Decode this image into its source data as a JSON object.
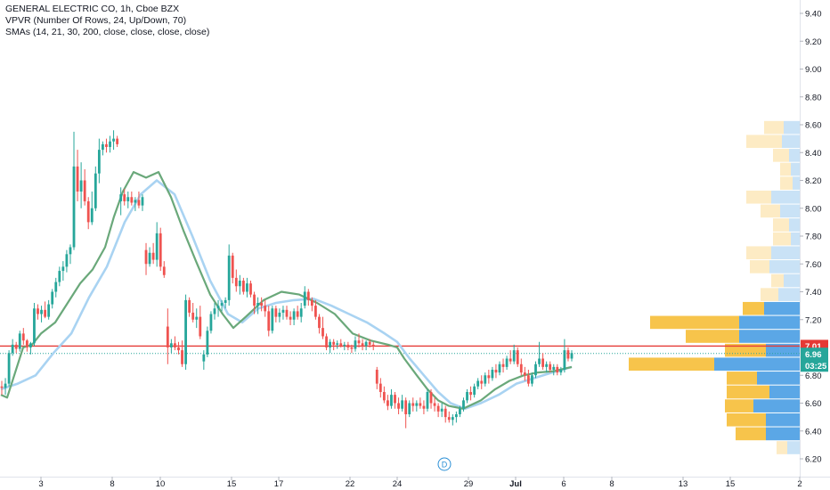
{
  "legend": {
    "symbol_line": "GENERAL ELECTRIC CO, 1h, Cboe BZX",
    "vpvr_line": "VPVR (Number Of Rows, 24, Up/Down, 70)",
    "sma_line": "SMAs (14, 21, 30, 200, close, close, close, close)"
  },
  "colors": {
    "up": "#26a69a",
    "down": "#ef5350",
    "sma_fast": "#6aa87a",
    "sma_slow": "#a9d3f2",
    "vp_up": "#f7c44b",
    "vp_down": "#5ba7e6",
    "vp_up_faded": "#fdebc4",
    "vp_down_faded": "#c9e2f6",
    "price_line": "#e53935",
    "last_price_bg": "#26a69a"
  },
  "chart_data": {
    "type": "candlestick",
    "price_axis": {
      "ticks": [
        "6.20",
        "6.40",
        "6.60",
        "6.80",
        "7.00",
        "7.20",
        "7.40",
        "7.60",
        "7.80",
        "8.00",
        "8.20",
        "8.40",
        "8.60",
        "8.80",
        "9.00",
        "9.20",
        "9.40"
      ],
      "range": [
        6.12,
        9.5
      ]
    },
    "time_axis": {
      "labels": [
        "3",
        "8",
        "10",
        "15",
        "17",
        "22",
        "24",
        "29",
        "Jul",
        "6",
        "8",
        "13",
        "15",
        "2"
      ]
    },
    "price_labels": {
      "horizontal_line": "7.01",
      "last_price": "6.96",
      "countdown": "03:25"
    },
    "dividend_marker": "D",
    "candles": [
      [
        6.72,
        6.76,
        6.66,
        6.71
      ],
      [
        6.71,
        6.78,
        6.66,
        6.74
      ],
      [
        6.74,
        6.98,
        6.72,
        6.96
      ],
      [
        6.96,
        7.06,
        6.94,
        7.02
      ],
      [
        7.02,
        7.04,
        6.96,
        6.99
      ],
      [
        6.99,
        7.12,
        6.97,
        7.1
      ],
      [
        7.1,
        7.14,
        7.02,
        7.05
      ],
      [
        7.05,
        7.06,
        6.97,
        7.0
      ],
      [
        7.0,
        7.04,
        6.95,
        7.03
      ],
      [
        7.03,
        7.32,
        7.01,
        7.28
      ],
      [
        7.28,
        7.31,
        7.2,
        7.24
      ],
      [
        7.24,
        7.3,
        7.18,
        7.27
      ],
      [
        7.27,
        7.33,
        7.21,
        7.22
      ],
      [
        7.22,
        7.34,
        7.2,
        7.31
      ],
      [
        7.31,
        7.42,
        7.28,
        7.4
      ],
      [
        7.4,
        7.5,
        7.36,
        7.47
      ],
      [
        7.47,
        7.58,
        7.44,
        7.55
      ],
      [
        7.55,
        7.62,
        7.48,
        7.58
      ],
      [
        7.58,
        7.7,
        7.54,
        7.67
      ],
      [
        7.67,
        7.74,
        7.6,
        7.72
      ],
      [
        7.72,
        8.55,
        7.7,
        8.3
      ],
      [
        8.3,
        8.42,
        8.05,
        8.12
      ],
      [
        8.12,
        8.33,
        8.0,
        8.2
      ],
      [
        8.2,
        8.28,
        8.02,
        8.05
      ],
      [
        8.05,
        8.08,
        7.85,
        7.9
      ],
      [
        7.9,
        8.12,
        7.88,
        8.0
      ],
      [
        8.0,
        8.3,
        7.98,
        8.25
      ],
      [
        8.25,
        8.5,
        8.18,
        8.42
      ],
      [
        8.42,
        8.48,
        8.38,
        8.46
      ],
      [
        8.46,
        8.5,
        8.4,
        8.44
      ],
      [
        8.44,
        8.52,
        8.4,
        8.48
      ],
      [
        8.48,
        8.56,
        8.42,
        8.5
      ],
      [
        8.5,
        8.52,
        8.44,
        8.46
      ],
      [
        8.05,
        8.15,
        7.95,
        8.1
      ],
      [
        8.1,
        8.14,
        8.02,
        8.05
      ],
      [
        8.05,
        8.12,
        8.0,
        8.08
      ],
      [
        8.08,
        8.12,
        8.02,
        8.04
      ],
      [
        8.04,
        8.08,
        7.98,
        8.06
      ],
      [
        8.06,
        8.12,
        8.0,
        8.02
      ],
      [
        8.02,
        8.1,
        7.98,
        8.08
      ],
      [
        7.7,
        7.75,
        7.52,
        7.6
      ],
      [
        7.6,
        7.72,
        7.58,
        7.68
      ],
      [
        7.68,
        7.75,
        7.6,
        7.63
      ],
      [
        7.63,
        7.9,
        7.58,
        7.82
      ],
      [
        7.82,
        7.86,
        7.55,
        7.58
      ],
      [
        7.58,
        7.62,
        7.5,
        7.52
      ],
      [
        7.15,
        7.28,
        6.88,
        7.0
      ],
      [
        7.0,
        7.06,
        6.96,
        7.03
      ],
      [
        7.03,
        7.08,
        6.98,
        7.0
      ],
      [
        7.0,
        7.04,
        6.95,
        6.98
      ],
      [
        6.98,
        7.05,
        6.86,
        6.88
      ],
      [
        6.88,
        7.38,
        6.84,
        7.34
      ],
      [
        7.34,
        7.36,
        7.22,
        7.25
      ],
      [
        7.25,
        7.32,
        7.18,
        7.2
      ],
      [
        7.2,
        7.28,
        7.14,
        7.22
      ],
      [
        7.22,
        7.3,
        7.06,
        7.08
      ],
      [
        6.9,
        6.98,
        6.84,
        6.95
      ],
      [
        6.95,
        7.15,
        6.93,
        7.12
      ],
      [
        7.12,
        7.26,
        7.1,
        7.24
      ],
      [
        7.24,
        7.32,
        7.2,
        7.28
      ],
      [
        7.28,
        7.34,
        7.22,
        7.3
      ],
      [
        7.3,
        7.34,
        7.26,
        7.32
      ],
      [
        7.32,
        7.36,
        7.28,
        7.34
      ],
      [
        7.34,
        7.74,
        7.3,
        7.66
      ],
      [
        7.66,
        7.68,
        7.46,
        7.5
      ],
      [
        7.5,
        7.56,
        7.4,
        7.44
      ],
      [
        7.44,
        7.52,
        7.38,
        7.48
      ],
      [
        7.48,
        7.5,
        7.38,
        7.4
      ],
      [
        7.4,
        7.5,
        7.36,
        7.46
      ],
      [
        7.46,
        7.48,
        7.36,
        7.38
      ],
      [
        7.38,
        7.4,
        7.24,
        7.3
      ],
      [
        7.3,
        7.36,
        7.24,
        7.32
      ],
      [
        7.32,
        7.36,
        7.26,
        7.3
      ],
      [
        7.3,
        7.34,
        7.22,
        7.26
      ],
      [
        7.26,
        7.3,
        7.08,
        7.12
      ],
      [
        7.12,
        7.3,
        7.1,
        7.28
      ],
      [
        7.28,
        7.3,
        7.18,
        7.22
      ],
      [
        7.22,
        7.28,
        7.18,
        7.25
      ],
      [
        7.25,
        7.3,
        7.2,
        7.27
      ],
      [
        7.27,
        7.3,
        7.2,
        7.22
      ],
      [
        7.22,
        7.26,
        7.16,
        7.2
      ],
      [
        7.2,
        7.28,
        7.16,
        7.26
      ],
      [
        7.26,
        7.3,
        7.2,
        7.22
      ],
      [
        7.22,
        7.32,
        7.18,
        7.28
      ],
      [
        7.3,
        7.44,
        7.28,
        7.4
      ],
      [
        7.4,
        7.42,
        7.3,
        7.34
      ],
      [
        7.34,
        7.36,
        7.26,
        7.3
      ],
      [
        7.3,
        7.34,
        7.2,
        7.22
      ],
      [
        7.22,
        7.24,
        7.1,
        7.14
      ],
      [
        7.14,
        7.22,
        7.06,
        7.08
      ],
      [
        7.08,
        7.1,
        6.98,
        7.0
      ],
      [
        7.0,
        7.06,
        6.96,
        7.04
      ],
      [
        7.04,
        7.06,
        6.98,
        7.02
      ],
      [
        7.02,
        7.05,
        6.99,
        7.03
      ],
      [
        7.03,
        7.06,
        7.0,
        7.01
      ],
      [
        7.01,
        7.04,
        6.98,
        7.02
      ],
      [
        7.02,
        7.04,
        6.98,
        7.0
      ],
      [
        7.0,
        7.02,
        6.96,
        6.99
      ],
      [
        6.99,
        7.08,
        6.97,
        7.05
      ],
      [
        7.05,
        7.1,
        7.0,
        7.03
      ],
      [
        7.03,
        7.06,
        6.98,
        7.01
      ],
      [
        7.01,
        7.05,
        6.98,
        7.04
      ],
      [
        7.04,
        7.06,
        7.0,
        7.02
      ],
      [
        7.02,
        7.04,
        6.98,
        7.01
      ],
      [
        6.84,
        6.86,
        6.7,
        6.74
      ],
      [
        6.74,
        6.78,
        6.64,
        6.68
      ],
      [
        6.68,
        6.72,
        6.6,
        6.62
      ],
      [
        6.62,
        6.66,
        6.55,
        6.58
      ],
      [
        6.58,
        6.7,
        6.56,
        6.66
      ],
      [
        6.66,
        6.68,
        6.56,
        6.6
      ],
      [
        6.6,
        6.64,
        6.52,
        6.56
      ],
      [
        6.56,
        6.66,
        6.54,
        6.62
      ],
      [
        6.62,
        6.64,
        6.42,
        6.52
      ],
      [
        6.52,
        6.62,
        6.5,
        6.6
      ],
      [
        6.6,
        6.64,
        6.54,
        6.58
      ],
      [
        6.58,
        6.62,
        6.54,
        6.6
      ],
      [
        6.6,
        6.64,
        6.56,
        6.58
      ],
      [
        6.58,
        6.62,
        6.52,
        6.56
      ],
      [
        6.56,
        6.7,
        6.54,
        6.68
      ],
      [
        6.68,
        6.7,
        6.56,
        6.6
      ],
      [
        6.6,
        6.64,
        6.54,
        6.58
      ],
      [
        6.58,
        6.6,
        6.5,
        6.54
      ],
      [
        6.54,
        6.6,
        6.5,
        6.56
      ],
      [
        6.56,
        6.58,
        6.46,
        6.5
      ],
      [
        6.5,
        6.54,
        6.46,
        6.48
      ],
      [
        6.48,
        6.52,
        6.44,
        6.5
      ],
      [
        6.5,
        6.54,
        6.46,
        6.52
      ],
      [
        6.52,
        6.58,
        6.5,
        6.56
      ],
      [
        6.56,
        6.64,
        6.54,
        6.62
      ],
      [
        6.62,
        6.7,
        6.6,
        6.68
      ],
      [
        6.68,
        6.72,
        6.62,
        6.66
      ],
      [
        6.66,
        6.74,
        6.64,
        6.72
      ],
      [
        6.72,
        6.78,
        6.7,
        6.76
      ],
      [
        6.76,
        6.8,
        6.7,
        6.74
      ],
      [
        6.74,
        6.82,
        6.72,
        6.8
      ],
      [
        6.8,
        6.84,
        6.74,
        6.78
      ],
      [
        6.78,
        6.86,
        6.76,
        6.84
      ],
      [
        6.84,
        6.88,
        6.78,
        6.82
      ],
      [
        6.82,
        6.9,
        6.8,
        6.88
      ],
      [
        6.88,
        6.92,
        6.82,
        6.86
      ],
      [
        6.86,
        6.94,
        6.84,
        6.92
      ],
      [
        6.92,
        6.98,
        6.88,
        6.9
      ],
      [
        6.9,
        7.02,
        6.88,
        6.98
      ],
      [
        6.98,
        7.0,
        6.86,
        6.88
      ],
      [
        6.88,
        6.92,
        6.8,
        6.82
      ],
      [
        6.82,
        6.86,
        6.76,
        6.8
      ],
      [
        6.8,
        6.84,
        6.72,
        6.74
      ],
      [
        6.74,
        6.82,
        6.72,
        6.8
      ],
      [
        6.8,
        6.9,
        6.78,
        6.88
      ],
      [
        6.88,
        7.04,
        6.86,
        6.92
      ],
      [
        6.92,
        6.96,
        6.84,
        6.86
      ],
      [
        6.86,
        6.9,
        6.82,
        6.88
      ],
      [
        6.88,
        6.9,
        6.82,
        6.84
      ],
      [
        6.84,
        6.88,
        6.8,
        6.86
      ],
      [
        6.86,
        6.88,
        6.8,
        6.82
      ],
      [
        6.82,
        6.86,
        6.8,
        6.84
      ],
      [
        6.84,
        7.06,
        6.82,
        6.98
      ],
      [
        6.98,
        7.0,
        6.9,
        6.92
      ],
      [
        6.92,
        6.98,
        6.9,
        6.96
      ]
    ],
    "sma_fast": [
      [
        1,
        6.66
      ],
      [
        8,
        6.64
      ],
      [
        16,
        6.8
      ],
      [
        26,
        7.0
      ],
      [
        36,
        7.02
      ],
      [
        46,
        7.1
      ],
      [
        62,
        7.18
      ],
      [
        76,
        7.32
      ],
      [
        90,
        7.46
      ],
      [
        104,
        7.56
      ],
      [
        118,
        7.72
      ],
      [
        128,
        7.94
      ],
      [
        138,
        8.12
      ],
      [
        150,
        8.26
      ],
      [
        164,
        8.22
      ],
      [
        178,
        8.26
      ],
      [
        192,
        8.08
      ],
      [
        206,
        7.84
      ],
      [
        220,
        7.62
      ],
      [
        236,
        7.38
      ],
      [
        250,
        7.24
      ],
      [
        262,
        7.14
      ],
      [
        276,
        7.22
      ],
      [
        296,
        7.34
      ],
      [
        316,
        7.4
      ],
      [
        336,
        7.38
      ],
      [
        356,
        7.32
      ],
      [
        376,
        7.24
      ],
      [
        396,
        7.1
      ],
      [
        416,
        7.05
      ],
      [
        436,
        7.02
      ],
      [
        446,
        7.0
      ],
      [
        454,
        6.92
      ],
      [
        468,
        6.8
      ],
      [
        480,
        6.7
      ],
      [
        492,
        6.62
      ],
      [
        504,
        6.58
      ],
      [
        520,
        6.56
      ],
      [
        540,
        6.62
      ],
      [
        556,
        6.7
      ],
      [
        572,
        6.76
      ],
      [
        588,
        6.8
      ],
      [
        604,
        6.82
      ],
      [
        622,
        6.83
      ],
      [
        642,
        6.86
      ]
    ],
    "sma_slow": [
      [
        1,
        6.7
      ],
      [
        20,
        6.74
      ],
      [
        40,
        6.8
      ],
      [
        60,
        6.96
      ],
      [
        80,
        7.1
      ],
      [
        100,
        7.36
      ],
      [
        120,
        7.58
      ],
      [
        140,
        7.9
      ],
      [
        158,
        8.1
      ],
      [
        176,
        8.2
      ],
      [
        196,
        8.1
      ],
      [
        216,
        7.8
      ],
      [
        236,
        7.48
      ],
      [
        256,
        7.24
      ],
      [
        272,
        7.18
      ],
      [
        290,
        7.28
      ],
      [
        310,
        7.32
      ],
      [
        330,
        7.34
      ],
      [
        352,
        7.35
      ],
      [
        372,
        7.3
      ],
      [
        392,
        7.24
      ],
      [
        412,
        7.18
      ],
      [
        432,
        7.1
      ],
      [
        446,
        7.04
      ],
      [
        460,
        6.92
      ],
      [
        476,
        6.8
      ],
      [
        492,
        6.68
      ],
      [
        506,
        6.6
      ],
      [
        522,
        6.56
      ],
      [
        540,
        6.6
      ],
      [
        560,
        6.66
      ],
      [
        580,
        6.74
      ],
      [
        600,
        6.78
      ],
      [
        620,
        6.82
      ],
      [
        642,
        6.86
      ]
    ],
    "volume_profile": [
      {
        "price": 8.58,
        "up": 22,
        "down": 18,
        "faded": true
      },
      {
        "price": 8.48,
        "up": 40,
        "down": 20,
        "faded": true
      },
      {
        "price": 8.38,
        "up": 18,
        "down": 12,
        "faded": true
      },
      {
        "price": 8.28,
        "up": 12,
        "down": 10,
        "faded": true
      },
      {
        "price": 8.18,
        "up": 14,
        "down": 8,
        "faded": true
      },
      {
        "price": 8.08,
        "up": 28,
        "down": 32,
        "faded": true
      },
      {
        "price": 7.98,
        "up": 22,
        "down": 22,
        "faded": true
      },
      {
        "price": 7.88,
        "up": 18,
        "down": 12,
        "faded": true
      },
      {
        "price": 7.78,
        "up": 20,
        "down": 10,
        "faded": true
      },
      {
        "price": 7.68,
        "up": 28,
        "down": 32,
        "faded": true
      },
      {
        "price": 7.58,
        "up": 22,
        "down": 34,
        "faded": true
      },
      {
        "price": 7.48,
        "up": 14,
        "down": 18,
        "faded": true
      },
      {
        "price": 7.38,
        "up": 20,
        "down": 24,
        "faded": true
      },
      {
        "price": 7.28,
        "up": 24,
        "down": 40,
        "faded": false
      },
      {
        "price": 7.18,
        "up": 100,
        "down": 68,
        "faded": false
      },
      {
        "price": 7.08,
        "up": 60,
        "down": 68,
        "faded": false
      },
      {
        "price": 6.98,
        "up": 46,
        "down": 38,
        "faded": false
      },
      {
        "price": 6.88,
        "up": 96,
        "down": 96,
        "faded": false
      },
      {
        "price": 6.78,
        "up": 34,
        "down": 48,
        "faded": false
      },
      {
        "price": 6.68,
        "up": 48,
        "down": 34,
        "faded": false
      },
      {
        "price": 6.58,
        "up": 32,
        "down": 52,
        "faded": false
      },
      {
        "price": 6.48,
        "up": 44,
        "down": 38,
        "faded": false
      },
      {
        "price": 6.38,
        "up": 34,
        "down": 38,
        "faded": false
      },
      {
        "price": 6.28,
        "up": 12,
        "down": 14,
        "faded": true
      }
    ]
  }
}
